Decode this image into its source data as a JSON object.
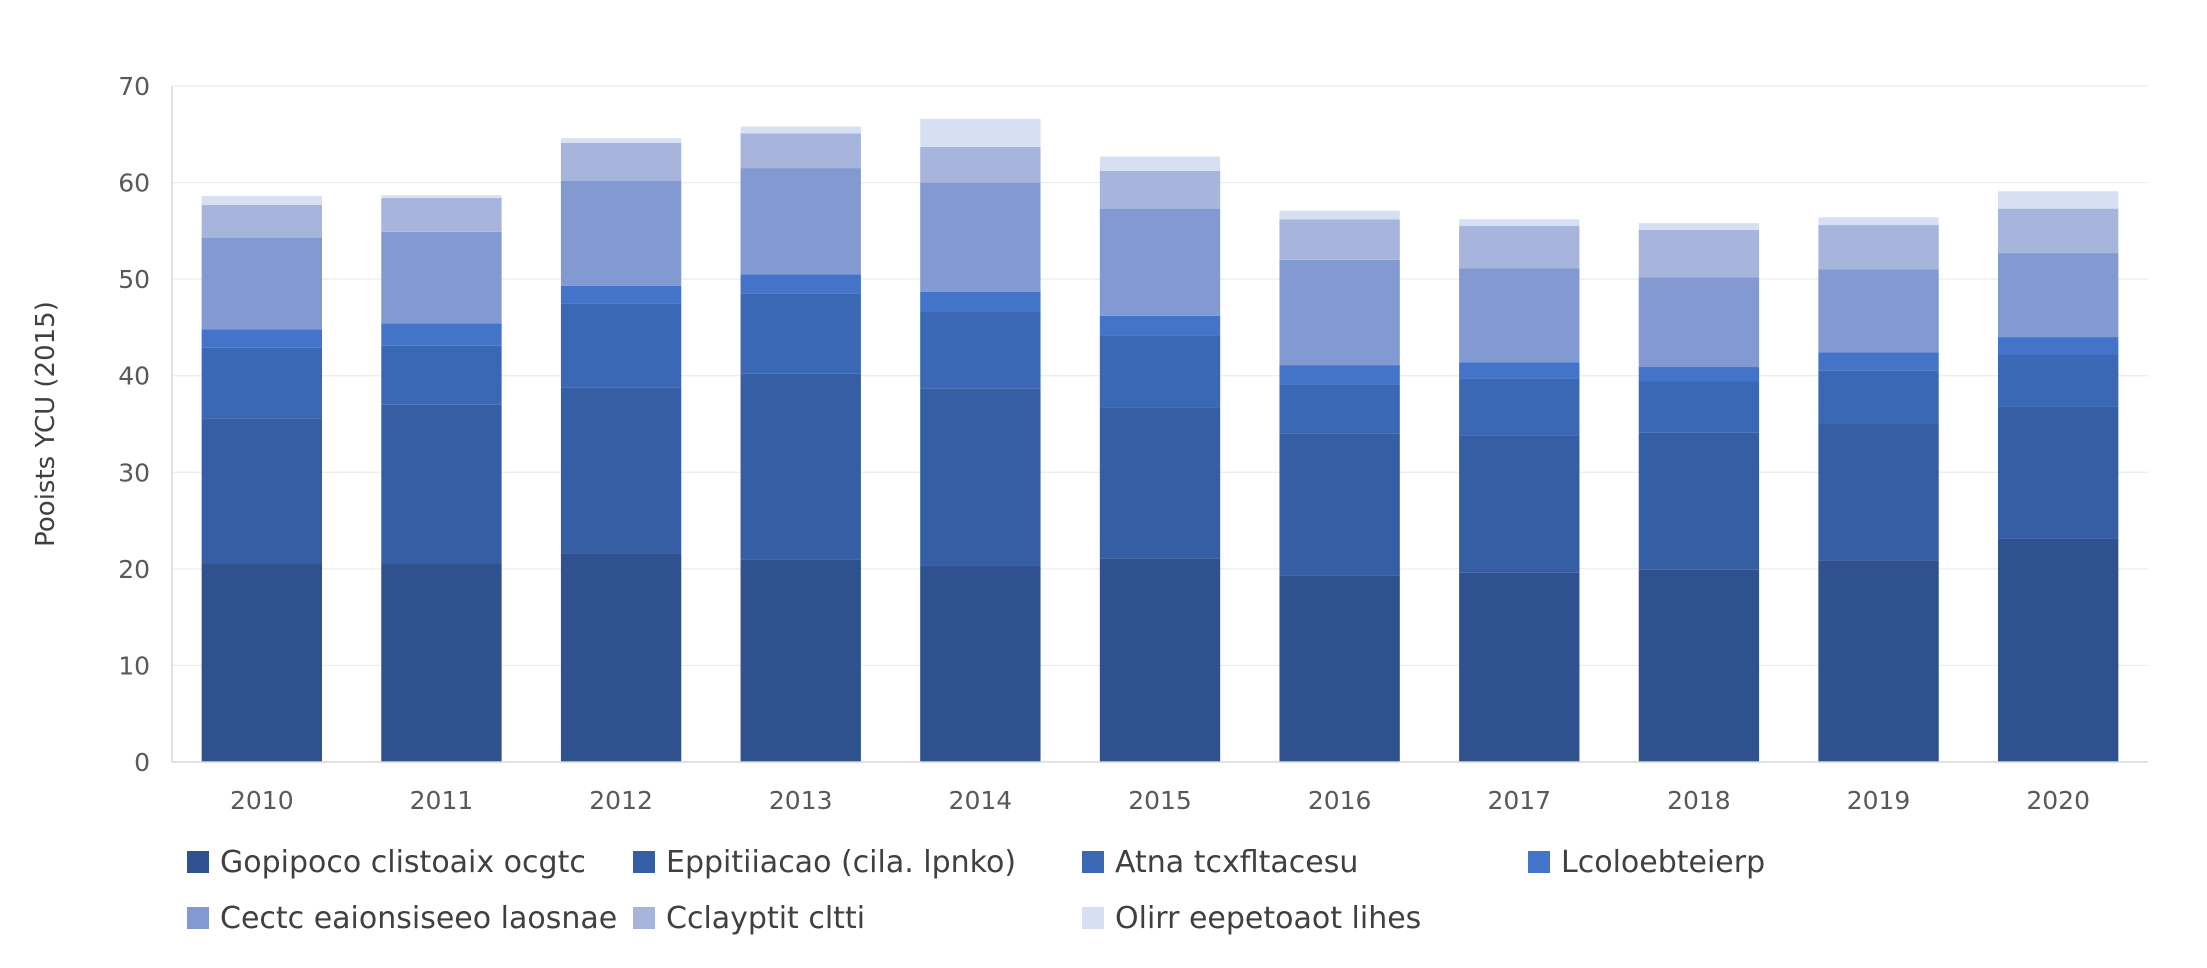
{
  "chart_data": {
    "type": "bar",
    "stacked": true,
    "categories": [
      "2010",
      "2011",
      "2012",
      "2013",
      "2014",
      "2015",
      "2016",
      "2017",
      "2018",
      "2019",
      "2020"
    ],
    "ylabel": "Pooists YCU (2015)",
    "ylim": [
      0,
      70
    ],
    "yticks": [
      0,
      10,
      20,
      30,
      40,
      50,
      60,
      70
    ],
    "grid": true,
    "legend_position": "bottom",
    "series": [
      {
        "name": "Gopipoco clistoaix ocgtc",
        "color": "#2f518d",
        "values": [
          20.5,
          20.6,
          21.6,
          21.0,
          20.3,
          21.1,
          19.3,
          19.6,
          19.9,
          20.9,
          23.1
        ]
      },
      {
        "name": "Eppitiiacao (cila. lpnko)",
        "color": "#355ea4",
        "values": [
          15.1,
          16.4,
          17.2,
          19.2,
          18.4,
          15.6,
          14.7,
          14.2,
          14.2,
          14.1,
          13.7
        ]
      },
      {
        "name": "Atna tcxfltacesu",
        "color": "#3a68b5",
        "values": [
          7.3,
          6.1,
          8.7,
          8.3,
          7.9,
          7.5,
          5.1,
          5.9,
          5.3,
          5.5,
          5.4
        ]
      },
      {
        "name": "Lcoloebteierp",
        "color": "#4374c9",
        "values": [
          1.9,
          2.3,
          1.8,
          2.0,
          2.1,
          2.0,
          2.0,
          1.7,
          1.5,
          1.9,
          1.8
        ]
      },
      {
        "name": "Cectc eaionsiseeo laosnae",
        "color": "#8299d2",
        "values": [
          9.5,
          9.5,
          10.9,
          11.0,
          11.3,
          11.1,
          10.9,
          9.7,
          9.3,
          8.6,
          8.7
        ]
      },
      {
        "name": "Cclayptit cltti",
        "color": "#a7b5dd",
        "values": [
          3.4,
          3.5,
          3.9,
          3.6,
          3.7,
          3.9,
          4.2,
          4.4,
          4.9,
          4.6,
          4.6
        ]
      },
      {
        "name": "Olirr eepetoaot lihes",
        "color": "#d7e0f3",
        "values": [
          0.9,
          0.3,
          0.5,
          0.7,
          2.9,
          1.5,
          0.9,
          0.7,
          0.7,
          0.8,
          1.8
        ]
      }
    ]
  }
}
